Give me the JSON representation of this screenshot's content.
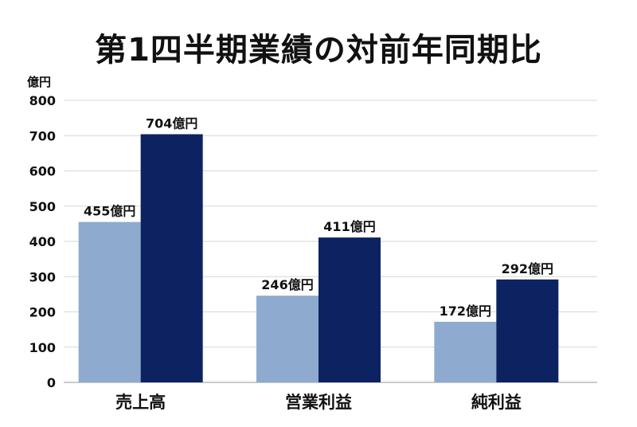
{
  "chart_data": {
    "type": "bar",
    "title": "第1四半期業績の対前年同期比",
    "y_unit_label": "億円",
    "ylim": [
      0,
      800
    ],
    "y_ticks": [
      0,
      100,
      200,
      300,
      400,
      500,
      600,
      700,
      800
    ],
    "grid": true,
    "categories": [
      "売上高",
      "営業利益",
      "純利益"
    ],
    "series": [
      {
        "values": [
          455,
          246,
          172
        ],
        "color": "#8eaacf",
        "data_labels": [
          "455億円",
          "246億円",
          "172億円"
        ]
      },
      {
        "values": [
          704,
          411,
          292
        ],
        "color": "#0d2260",
        "data_labels": [
          "704億円",
          "411億円",
          "292億円"
        ]
      }
    ]
  }
}
